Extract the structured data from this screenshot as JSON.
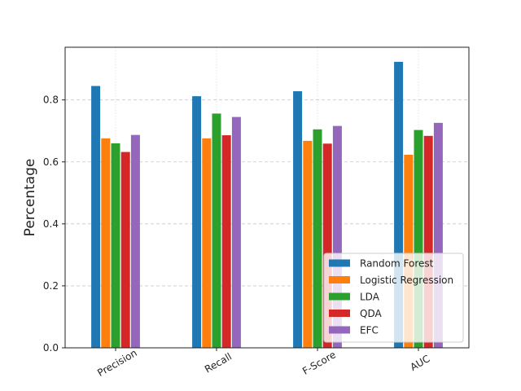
{
  "chart_data": {
    "type": "bar",
    "title": "",
    "xlabel": "",
    "ylabel": "Percentage",
    "categories": [
      "Precision",
      "Recall",
      "F-Score",
      "AUC"
    ],
    "ylim": [
      0,
      0.97
    ],
    "yticks": [
      "0.0",
      "0.2",
      "0.4",
      "0.6",
      "0.8"
    ],
    "grid": true,
    "legend_position": "lower-right",
    "series": [
      {
        "name": "Random Forest",
        "color": "#1f77b4",
        "values": [
          0.845,
          0.812,
          0.828,
          0.923
        ]
      },
      {
        "name": "Logistic Regression",
        "color": "#ff7f0e",
        "values": [
          0.676,
          0.676,
          0.668,
          0.623
        ]
      },
      {
        "name": "LDA",
        "color": "#2ca02c",
        "values": [
          0.66,
          0.756,
          0.705,
          0.703
        ]
      },
      {
        "name": "QDA",
        "color": "#d62728",
        "values": [
          0.632,
          0.686,
          0.659,
          0.684
        ]
      },
      {
        "name": "EFC",
        "color": "#9467bd",
        "values": [
          0.687,
          0.745,
          0.716,
          0.726
        ]
      }
    ]
  }
}
